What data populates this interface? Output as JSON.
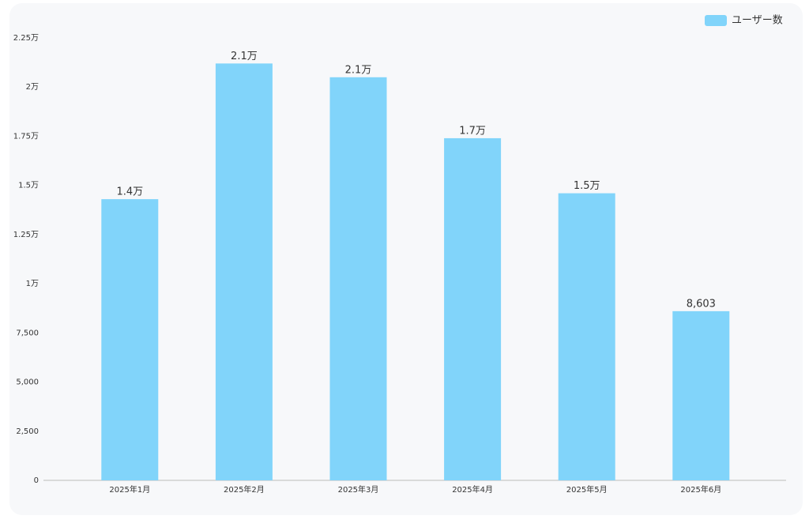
{
  "chart_data": {
    "type": "bar",
    "categories": [
      "2025年1月",
      "2025年2月",
      "2025年3月",
      "2025年4月",
      "2025年5月",
      "2025年6月"
    ],
    "series": [
      {
        "name": "ユーザー数",
        "color": "#81d4fa",
        "values": [
          14300,
          21200,
          20500,
          17400,
          14600,
          8603
        ],
        "value_labels": [
          "1.4万",
          "2.1万",
          "2.1万",
          "1.7万",
          "1.5万",
          "8,603"
        ]
      }
    ],
    "ylim": [
      0,
      22500
    ],
    "yticks": [
      0,
      {
        "value": 2500,
        "label": "2,500"
      },
      {
        "value": 5000,
        "label": "5,000"
      },
      {
        "value": 7500,
        "label": "7,500"
      },
      {
        "value": 10000,
        "label": "1万"
      },
      {
        "value": 12500,
        "label": "1.25万"
      },
      {
        "value": 15000,
        "label": "1.5万"
      },
      {
        "value": 17500,
        "label": "1.75万"
      },
      {
        "value": 20000,
        "label": "2万"
      },
      {
        "value": 22500,
        "label": "2.25万"
      }
    ],
    "grid": false,
    "legend": "top-right"
  }
}
